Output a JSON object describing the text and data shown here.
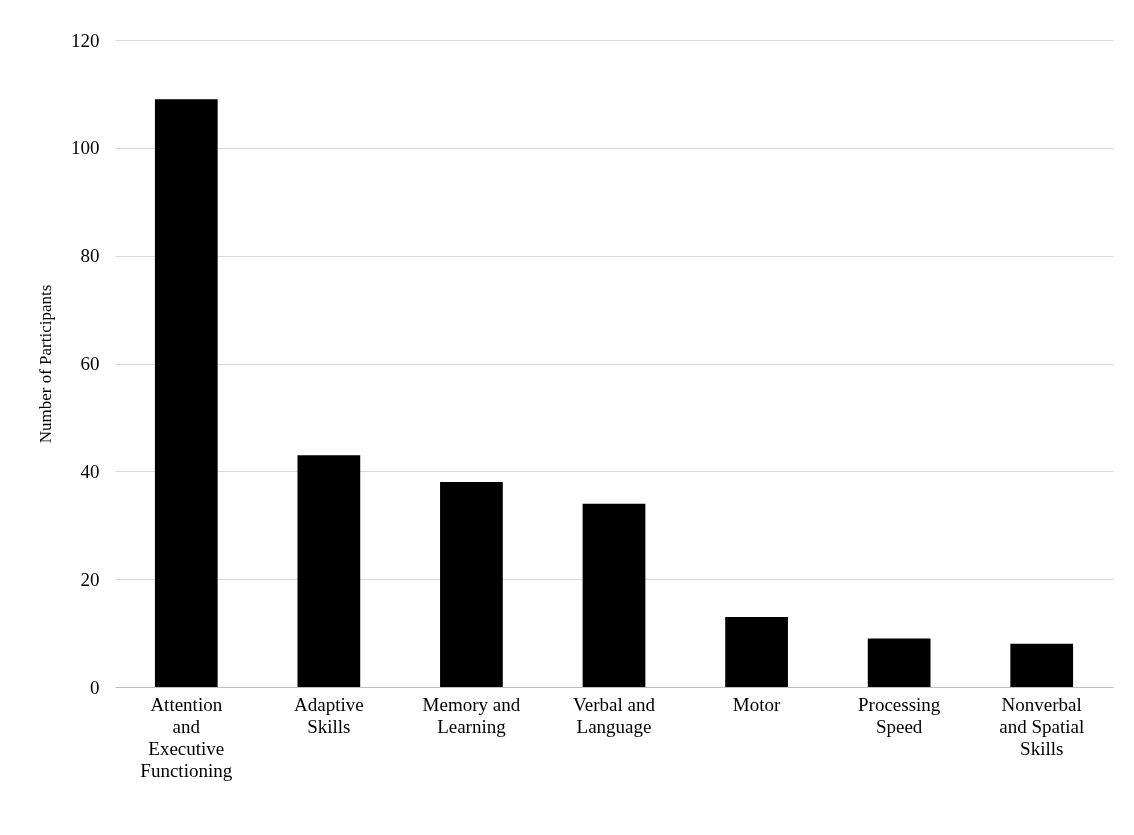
{
  "chart_data": {
    "type": "bar",
    "ylabel": "Number of Participants",
    "categories": [
      "Attention and Executive Functioning",
      "Adaptive Skills",
      "Memory and Learning",
      "Verbal and Language",
      "Motor",
      "Processing Speed",
      "Nonverbal and Spatial Skills"
    ],
    "values": [
      109,
      43,
      38,
      34,
      13,
      9,
      8
    ],
    "color": "#000000",
    "ylim": [
      0,
      120
    ],
    "yticks": [
      0,
      20,
      40,
      60,
      80,
      100,
      120
    ],
    "grid": "y"
  }
}
